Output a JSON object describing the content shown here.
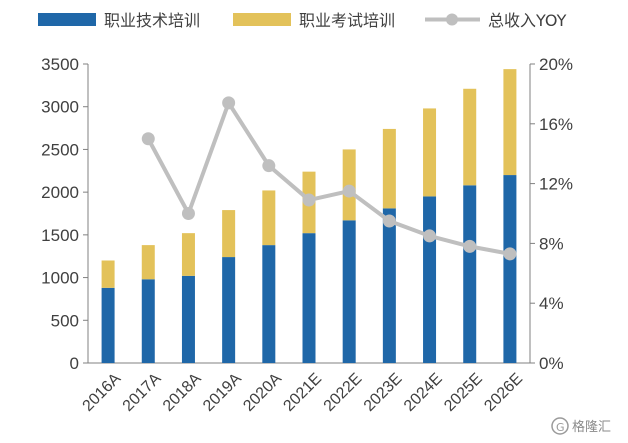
{
  "chart_data": {
    "type": "bar",
    "stacked": true,
    "categories": [
      "2016A",
      "2017A",
      "2018A",
      "2019A",
      "2020A",
      "2021E",
      "2022E",
      "2023E",
      "2024E",
      "2025E",
      "2026E"
    ],
    "series": [
      {
        "name": "职业技术培训",
        "axis": "left",
        "type": "bar",
        "color": "#1f67a8",
        "values": [
          880,
          980,
          1020,
          1240,
          1380,
          1520,
          1670,
          1810,
          1950,
          2080,
          2200
        ]
      },
      {
        "name": "职业考试培训",
        "axis": "left",
        "type": "bar",
        "color": "#e3c25a",
        "values": [
          320,
          400,
          500,
          550,
          640,
          720,
          830,
          930,
          1030,
          1130,
          1240
        ]
      },
      {
        "name": "总收入YOY",
        "axis": "right",
        "type": "line",
        "color": "#bfbfbf",
        "values": [
          null,
          15.0,
          10.0,
          17.4,
          13.2,
          10.9,
          11.5,
          9.5,
          8.5,
          7.8,
          7.3
        ]
      }
    ],
    "y_left": {
      "min": 0,
      "max": 3500,
      "ticks": [
        "0",
        "500",
        "1000",
        "1500",
        "2000",
        "2500",
        "3000",
        "3500"
      ]
    },
    "y_right": {
      "min": 0,
      "max": 20,
      "ticks": [
        "0%",
        "4%",
        "8%",
        "12%",
        "16%",
        "20%"
      ]
    },
    "legend_position": "top",
    "grid": false
  },
  "watermark": {
    "text": "格隆汇",
    "icon_letter": "G"
  }
}
